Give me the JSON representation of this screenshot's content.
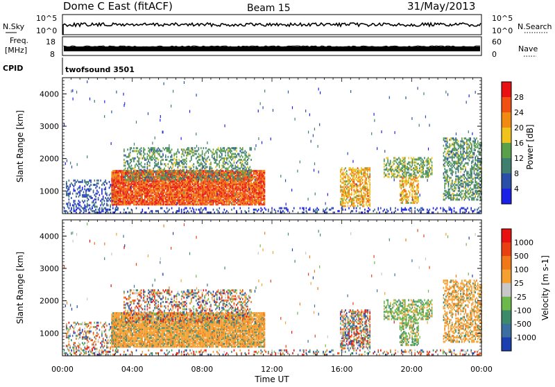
{
  "header": {
    "title": "Dome C East (fitACF)",
    "beam": "Beam 15",
    "date": "31/May/2013"
  },
  "status_panels": {
    "nsky_label": "N.Sky",
    "nsky_ticks": [
      "10^5",
      "10^0"
    ],
    "nsearch_label": "N.Search",
    "nsearch_ticks": [
      "10^5",
      "10^0"
    ],
    "freq_label": "Freq.",
    "freq_unit": "[MHz]",
    "freq_ticks": [
      "18",
      "8"
    ],
    "nave_label": "Nave",
    "nave_ticks": [
      "60",
      "0"
    ],
    "cpid_label": "CPID",
    "cpid_value": "twofsound 3501"
  },
  "colors": {
    "power_scale": [
      "#1b20e6",
      "#2a4fa8",
      "#3f7f6f",
      "#5aa04a",
      "#f0c21e",
      "#f08a10",
      "#f05010",
      "#e81010"
    ],
    "velocity_scale": [
      "#1b3fb0",
      "#3a6fa0",
      "#3d8a6a",
      "#6cb84a",
      "#c8c8c8",
      "#f5a030",
      "#f07818",
      "#e84010",
      "#e81010"
    ]
  },
  "chart_data": [
    {
      "type": "heatmap",
      "title": "",
      "ylabel": "Slant Range [km]",
      "xlabel": "",
      "y_ticks": [
        "1000",
        "2000",
        "3000",
        "4000"
      ],
      "ylim": [
        300,
        4500
      ],
      "x_ticks": [
        "00:00",
        "04:00",
        "08:00",
        "12:00",
        "16:00",
        "20:00",
        "00:00"
      ],
      "xlim_hours": [
        0,
        24
      ],
      "colorbar": {
        "label": "Power [dB]",
        "ticks": [
          "28",
          "24",
          "20",
          "16",
          "12",
          "8",
          "4"
        ],
        "range": [
          0,
          32
        ]
      }
    },
    {
      "type": "heatmap",
      "title": "",
      "ylabel": "Slant Range [km]",
      "xlabel": "Time UT",
      "y_ticks": [
        "1000",
        "2000",
        "3000",
        "4000"
      ],
      "ylim": [
        300,
        4500
      ],
      "x_ticks": [
        "00:00",
        "04:00",
        "08:00",
        "12:00",
        "16:00",
        "20:00",
        "00:00"
      ],
      "xlim_hours": [
        0,
        24
      ],
      "colorbar": {
        "label": "Velocity [m s-1]",
        "ticks": [
          "1000",
          "500",
          "100",
          "25",
          "-25",
          "-100",
          "-500",
          "-1000"
        ]
      }
    }
  ]
}
